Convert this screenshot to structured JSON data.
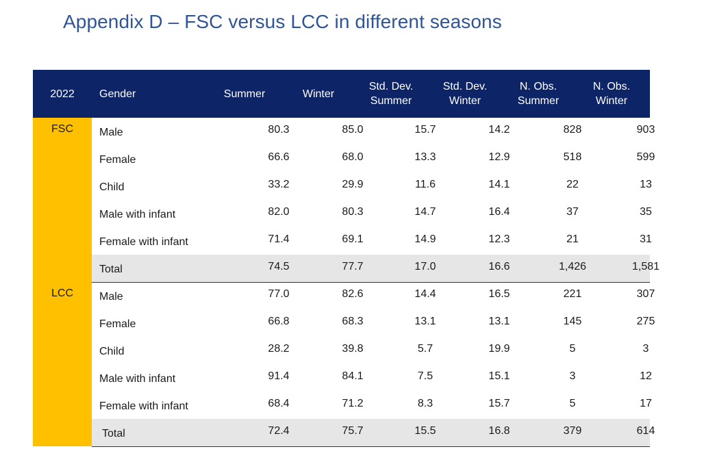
{
  "title": "Appendix D – FSC versus LCC in different seasons",
  "header": {
    "year": "2022",
    "gender": "Gender",
    "summer": "Summer",
    "winter": "Winter",
    "sd_summer_1": "Std. Dev.",
    "sd_summer_2": "Summer",
    "sd_winter_1": "Std. Dev.",
    "sd_winter_2": "Winter",
    "nobs_summer_1": "N. Obs.",
    "nobs_summer_2": "Summer",
    "nobs_winter_1": "N. Obs.",
    "nobs_winter_2": "Winter"
  },
  "colors": {
    "title": "#2f5597",
    "header_bg": "#0d2466",
    "group_bg": "#ffc000",
    "total_bg": "#e6e6e6"
  },
  "groups": [
    {
      "label": "FSC",
      "rows": [
        {
          "gender": "Male",
          "summer": "80.3",
          "winter": "85.0",
          "sd_summer": "15.7",
          "sd_winter": "14.2",
          "n_summer": "828",
          "n_winter": "903"
        },
        {
          "gender": "Female",
          "summer": "66.6",
          "winter": "68.0",
          "sd_summer": "13.3",
          "sd_winter": "12.9",
          "n_summer": "518",
          "n_winter": "599"
        },
        {
          "gender": "Child",
          "summer": "33.2",
          "winter": "29.9",
          "sd_summer": "11.6",
          "sd_winter": "14.1",
          "n_summer": "22",
          "n_winter": "13"
        },
        {
          "gender": "Male with infant",
          "summer": "82.0",
          "winter": "80.3",
          "sd_summer": "14.7",
          "sd_winter": "16.4",
          "n_summer": "37",
          "n_winter": "35"
        },
        {
          "gender": "Female with infant",
          "summer": "71.4",
          "winter": "69.1",
          "sd_summer": "14.9",
          "sd_winter": "12.3",
          "n_summer": "21",
          "n_winter": "31"
        },
        {
          "gender": "Total",
          "summer": "74.5",
          "winter": "77.7",
          "sd_summer": "17.0",
          "sd_winter": "16.6",
          "n_summer": "1,426",
          "n_winter": "1,581"
        }
      ]
    },
    {
      "label": "LCC",
      "rows": [
        {
          "gender": "Male",
          "summer": "77.0",
          "winter": "82.6",
          "sd_summer": "14.4",
          "sd_winter": "16.5",
          "n_summer": "221",
          "n_winter": "307"
        },
        {
          "gender": "Female",
          "summer": "66.8",
          "winter": "68.3",
          "sd_summer": "13.1",
          "sd_winter": "13.1",
          "n_summer": "145",
          "n_winter": "275"
        },
        {
          "gender": "Child",
          "summer": "28.2",
          "winter": "39.8",
          "sd_summer": "5.7",
          "sd_winter": "19.9",
          "n_summer": "5",
          "n_winter": "3"
        },
        {
          "gender": "Male with infant",
          "summer": "91.4",
          "winter": "84.1",
          "sd_summer": "7.5",
          "sd_winter": "15.1",
          "n_summer": "3",
          "n_winter": "12"
        },
        {
          "gender": "Female with infant",
          "summer": "68.4",
          "winter": "71.2",
          "sd_summer": "8.3",
          "sd_winter": "15.7",
          "n_summer": "5",
          "n_winter": "17"
        },
        {
          "gender": "Total",
          "summer": "72.4",
          "winter": "75.7",
          "sd_summer": "15.5",
          "sd_winter": "16.8",
          "n_summer": "379",
          "n_winter": "614"
        }
      ]
    }
  ]
}
